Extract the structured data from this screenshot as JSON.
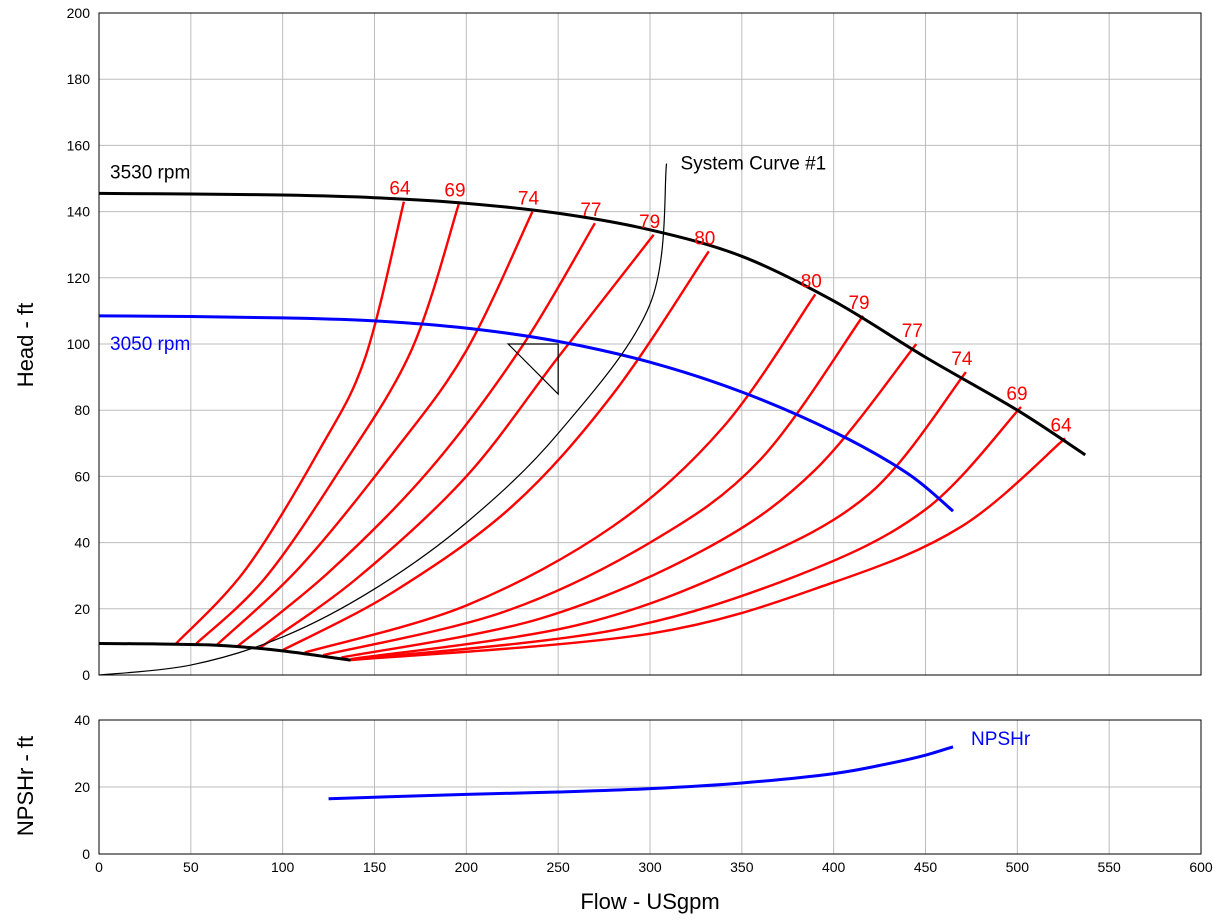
{
  "chart_data": {
    "type": "line",
    "title": "",
    "xlabel": "Flow - USgpm",
    "x_range": [
      0,
      600
    ],
    "x_ticks": [
      0,
      50,
      100,
      150,
      200,
      250,
      300,
      350,
      400,
      450,
      500,
      550,
      600
    ],
    "grid": true,
    "head_panel": {
      "ylabel": "Head - ft",
      "y_range": [
        0,
        200
      ],
      "y_ticks": [
        0,
        20,
        40,
        60,
        80,
        100,
        120,
        140,
        160,
        180,
        200
      ],
      "colors": {
        "pump_3530": "#000000",
        "pump_3050": "#0000ff",
        "efficiency": "#ff0000",
        "system": "#000000"
      },
      "series": [
        {
          "name": "3530 rpm",
          "color": "#000000",
          "points": [
            [
              0,
              145.5
            ],
            [
              50,
              145.3
            ],
            [
              100,
              145
            ],
            [
              150,
              144.2
            ],
            [
              200,
              142.5
            ],
            [
              250,
              139.5
            ],
            [
              300,
              134.5
            ],
            [
              350,
              126.5
            ],
            [
              400,
              113
            ],
            [
              450,
              96
            ],
            [
              500,
              80
            ],
            [
              537,
              66.5
            ]
          ]
        },
        {
          "name": "3050 rpm",
          "color": "#0000ff",
          "points": [
            [
              0,
              108.5
            ],
            [
              50,
              108.3
            ],
            [
              100,
              107.9
            ],
            [
              150,
              107
            ],
            [
              200,
              104.8
            ],
            [
              250,
              100.8
            ],
            [
              300,
              94.5
            ],
            [
              350,
              85.5
            ],
            [
              400,
              73.5
            ],
            [
              440,
              61
            ],
            [
              465,
              49.5
            ]
          ]
        },
        {
          "name": "System Curve #1",
          "color": "#000000",
          "points": [
            [
              0,
              0
            ],
            [
              50,
              3
            ],
            [
              100,
              11.5
            ],
            [
              150,
              26
            ],
            [
              200,
              46
            ],
            [
              250,
              73
            ],
            [
              300,
              112
            ],
            [
              309,
              154.5
            ]
          ]
        }
      ],
      "shutoff_curve": {
        "color": "#000000",
        "points": [
          [
            0,
            9.5
          ],
          [
            30,
            9.4
          ],
          [
            60,
            9.1
          ],
          [
            80,
            8.4
          ],
          [
            100,
            7.3
          ],
          [
            120,
            5.8
          ],
          [
            137,
            4.5
          ]
        ]
      },
      "efficiency_contours": [
        {
          "label": "64",
          "points": [
            [
              42,
              9.5
            ],
            [
              80,
              32
            ],
            [
              120,
              68
            ],
            [
              145,
              96
            ],
            [
              166,
              143
            ]
          ]
        },
        {
          "label": "69",
          "points": [
            [
              53,
              9.5
            ],
            [
              90,
              29
            ],
            [
              130,
              61
            ],
            [
              170,
              98
            ],
            [
              196,
              142.5
            ]
          ]
        },
        {
          "label": "74",
          "points": [
            [
              64,
              9
            ],
            [
              110,
              33
            ],
            [
              160,
              67
            ],
            [
              200,
              98
            ],
            [
              236,
              140
            ]
          ]
        },
        {
          "label": "77",
          "points": [
            [
              75,
              8.5
            ],
            [
              125,
              31
            ],
            [
              180,
              62
            ],
            [
              230,
              99
            ],
            [
              270,
              136.5
            ]
          ]
        },
        {
          "label": "79",
          "points": [
            [
              87,
              8
            ],
            [
              140,
              29
            ],
            [
              200,
              60
            ],
            [
              250,
              96
            ],
            [
              302,
              133
            ]
          ]
        },
        {
          "label": "80",
          "points": [
            [
              100,
              7.5
            ],
            [
              160,
              25
            ],
            [
              225,
              51
            ],
            [
              280,
              85
            ],
            [
              332,
              128
            ]
          ]
        },
        {
          "label": "80",
          "points": [
            [
              112,
              6.8
            ],
            [
              200,
              21
            ],
            [
              280,
              45
            ],
            [
              340,
              75
            ],
            [
              390,
              115
            ]
          ]
        },
        {
          "label": "79",
          "points": [
            [
              122,
              6
            ],
            [
              220,
              19
            ],
            [
              300,
              40
            ],
            [
              360,
              65
            ],
            [
              416,
              108.5
            ]
          ]
        },
        {
          "label": "77",
          "points": [
            [
              132,
              5.3
            ],
            [
              240,
              17
            ],
            [
              330,
              38
            ],
            [
              390,
              62
            ],
            [
              445,
              100
            ]
          ]
        },
        {
          "label": "74",
          "points": [
            [
              137,
              4.8
            ],
            [
              260,
              15
            ],
            [
              350,
              33
            ],
            [
              420,
              55
            ],
            [
              472,
              91.5
            ]
          ]
        },
        {
          "label": "69",
          "points": [
            [
              137,
              4.6
            ],
            [
              280,
              13.5
            ],
            [
              380,
              30
            ],
            [
              450,
              50
            ],
            [
              502,
              81
            ]
          ]
        },
        {
          "label": "64",
          "points": [
            [
              137,
              4.5
            ],
            [
              300,
              12.5
            ],
            [
              400,
              28
            ],
            [
              470,
              45
            ],
            [
              526,
              71.5
            ]
          ]
        }
      ],
      "operating_point": {
        "x": 250,
        "y": 100
      }
    },
    "npsh_panel": {
      "ylabel": "NPSHr - ft",
      "y_range": [
        0,
        40
      ],
      "y_ticks": [
        0,
        20,
        40
      ],
      "series": [
        {
          "name": "NPSHr",
          "color": "#0000ff",
          "points": [
            [
              125,
              16.5
            ],
            [
              200,
              17.8
            ],
            [
              250,
              18.5
            ],
            [
              300,
              19.5
            ],
            [
              350,
              21.2
            ],
            [
              400,
              24
            ],
            [
              430,
              27
            ],
            [
              450,
              29.5
            ],
            [
              465,
              32
            ]
          ]
        }
      ]
    }
  }
}
